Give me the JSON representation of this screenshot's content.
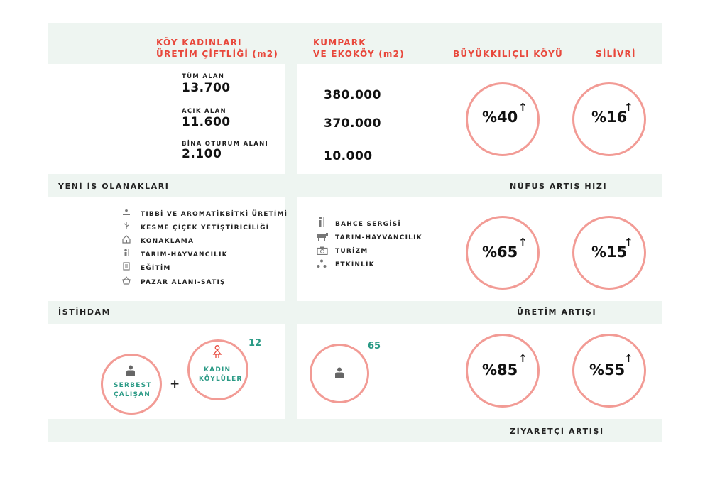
{
  "header": {
    "col1": "KÖY KADINLARI\nÜRETİM ÇİFTLİĞİ (m2)",
    "col2": "KUMPARK\nVE EKOKÖY (m2)",
    "col3": "BÜYÜKKILIÇLI KÖYÜ",
    "col4": "SİLİVRİ"
  },
  "areas": {
    "total_label": "TÜM ALAN",
    "total_value": "13.700",
    "open_label": "AÇIK ALAN",
    "open_value": "11.600",
    "building_label": "BİNA OTURUM ALANI",
    "building_value": "2.100",
    "kumpark_values": [
      "380.000",
      "370.000",
      "10.000"
    ]
  },
  "sections": {
    "jobs": "YENİ İŞ OLANAKLARI",
    "population": "NÜFUS ARTIŞ HIZI",
    "employment": "İSTİHDAM",
    "production": "ÜRETİM ARTIŞI",
    "visitors": "ZİYARETÇİ ARTIŞI"
  },
  "jobs_list_1": [
    {
      "icon": "plant-hand-icon",
      "label": "TIBBİ VE AROMATİKBİTKİ ÜRETİMİ"
    },
    {
      "icon": "flower-icon",
      "label": "KESME ÇİÇEK YETİŞTİRİCİLİĞİ"
    },
    {
      "icon": "house-icon",
      "label": "KONAKLAMA"
    },
    {
      "icon": "farmer-icon",
      "label": "TARIM-HAYVANCILIK"
    },
    {
      "icon": "book-icon",
      "label": "EĞİTİM"
    },
    {
      "icon": "basket-icon",
      "label": "PAZAR ALANI-SATIŞ"
    }
  ],
  "jobs_list_2": [
    {
      "icon": "gardener-icon",
      "label": "BAHÇE SERGİSİ"
    },
    {
      "icon": "cow-icon",
      "label": "TARIM-HAYVANCILIK"
    },
    {
      "icon": "camera-icon",
      "label": "TURİZM"
    },
    {
      "icon": "group-icon",
      "label": "ETKİNLİK"
    }
  ],
  "population": {
    "buyukkilicli": "%40",
    "silivri": "%16"
  },
  "production": {
    "buyukkilicli": "%65",
    "silivri": "%15"
  },
  "visitors": {
    "buyukkilicli": "%85",
    "silivri": "%55"
  },
  "employment": {
    "freelance_line1": "SERBEST",
    "freelance_line2": "ÇALIŞAN",
    "plus": "+",
    "women_line1": "KADIN",
    "women_line2": "KÖYLÜLER",
    "women_count": "12",
    "kumpark_count": "65"
  },
  "arrow_symbol": "↑",
  "colors": {
    "accent_red": "#e8483c",
    "circle_pink": "#f29b95",
    "teal": "#2a9a85",
    "band": "#eef5f1"
  }
}
